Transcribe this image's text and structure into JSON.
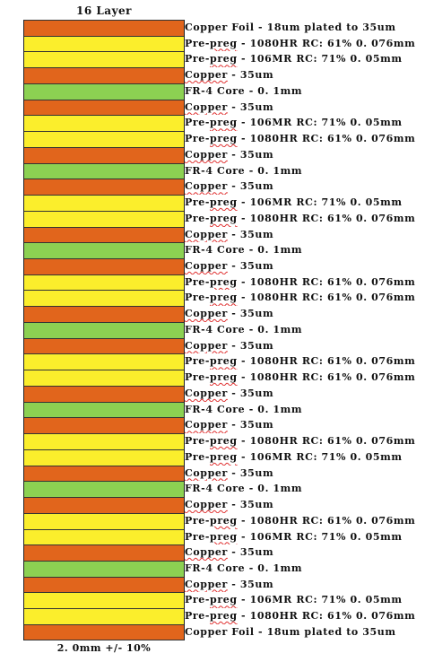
{
  "title": "16 Layer",
  "footer": "2. 0mm +/- 10%",
  "colors": {
    "copper": "#e1651c",
    "prepreg": "#fbee2c",
    "core": "#8cd152"
  },
  "layers": [
    {
      "type": "copper",
      "label": "Copper Foil - 18um plated to 35um"
    },
    {
      "type": "prepreg",
      "label": "Pre-preg - 1080HR RC: 61% 0. 076mm"
    },
    {
      "type": "prepreg",
      "label": "Pre-preg - 106MR RC: 71% 0. 05mm"
    },
    {
      "type": "copper",
      "label": "Copper - 35um"
    },
    {
      "type": "core",
      "label": "FR-4 Core - 0. 1mm"
    },
    {
      "type": "copper",
      "label": "Copper - 35um"
    },
    {
      "type": "prepreg",
      "label": "Pre-preg - 106MR RC: 71% 0. 05mm"
    },
    {
      "type": "prepreg",
      "label": "Pre-preg - 1080HR RC: 61% 0. 076mm"
    },
    {
      "type": "copper",
      "label": "Copper - 35um"
    },
    {
      "type": "core",
      "label": "FR-4 Core - 0. 1mm"
    },
    {
      "type": "copper",
      "label": "Copper - 35um"
    },
    {
      "type": "prepreg",
      "label": "Pre-preg - 106MR RC: 71% 0. 05mm"
    },
    {
      "type": "prepreg",
      "label": "Pre-preg - 1080HR RC: 61% 0. 076mm"
    },
    {
      "type": "copper",
      "label": "Copper - 35um"
    },
    {
      "type": "core",
      "label": "FR-4 Core - 0. 1mm"
    },
    {
      "type": "copper",
      "label": "Copper - 35um"
    },
    {
      "type": "prepreg",
      "label": "Pre-preg - 1080HR RC: 61% 0. 076mm"
    },
    {
      "type": "prepreg",
      "label": "Pre-preg - 1080HR RC: 61% 0. 076mm"
    },
    {
      "type": "copper",
      "label": "Copper - 35um"
    },
    {
      "type": "core",
      "label": "FR-4 Core - 0. 1mm"
    },
    {
      "type": "copper",
      "label": "Copper - 35um"
    },
    {
      "type": "prepreg",
      "label": "Pre-preg - 1080HR RC: 61% 0. 076mm"
    },
    {
      "type": "prepreg",
      "label": "Pre-preg - 1080HR RC: 61% 0. 076mm"
    },
    {
      "type": "copper",
      "label": "Copper - 35um"
    },
    {
      "type": "core",
      "label": "FR-4 Core - 0. 1mm"
    },
    {
      "type": "copper",
      "label": "Copper - 35um"
    },
    {
      "type": "prepreg",
      "label": "Pre-preg - 1080HR RC: 61% 0. 076mm"
    },
    {
      "type": "prepreg",
      "label": "Pre-preg - 106MR RC: 71% 0. 05mm"
    },
    {
      "type": "copper",
      "label": "Copper - 35um"
    },
    {
      "type": "core",
      "label": "FR-4 Core - 0. 1mm"
    },
    {
      "type": "copper",
      "label": "Copper - 35um"
    },
    {
      "type": "prepreg",
      "label": "Pre-preg - 1080HR RC: 61% 0. 076mm"
    },
    {
      "type": "prepreg",
      "label": "Pre-preg - 106MR RC: 71% 0. 05mm"
    },
    {
      "type": "copper",
      "label": "Copper - 35um"
    },
    {
      "type": "core",
      "label": "FR-4 Core - 0. 1mm"
    },
    {
      "type": "copper",
      "label": "Copper - 35um"
    },
    {
      "type": "prepreg",
      "label": "Pre-preg - 106MR RC: 71% 0. 05mm"
    },
    {
      "type": "prepreg",
      "label": "Pre-preg - 1080HR RC: 61% 0. 076mm"
    },
    {
      "type": "copper",
      "label": "Copper Foil - 18um plated to 35um"
    }
  ]
}
